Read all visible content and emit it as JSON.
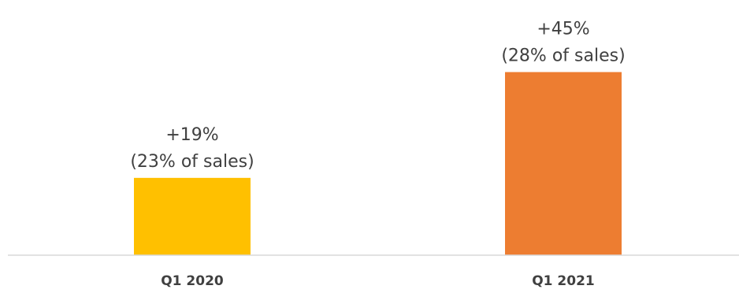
{
  "chart_data": {
    "type": "bar",
    "title": "",
    "xlabel": "",
    "ylabel": "",
    "categories": [
      "Q1 2020",
      "Q1 2021"
    ],
    "values": [
      19,
      45
    ],
    "data_labels": [
      [
        "+19%",
        "(23% of sales)"
      ],
      [
        "+45%",
        "(28% of sales)"
      ]
    ],
    "colors": [
      "#FFC000",
      "#ED7D31"
    ],
    "ylim": [
      0,
      48
    ],
    "grid": false,
    "legend": "none"
  }
}
